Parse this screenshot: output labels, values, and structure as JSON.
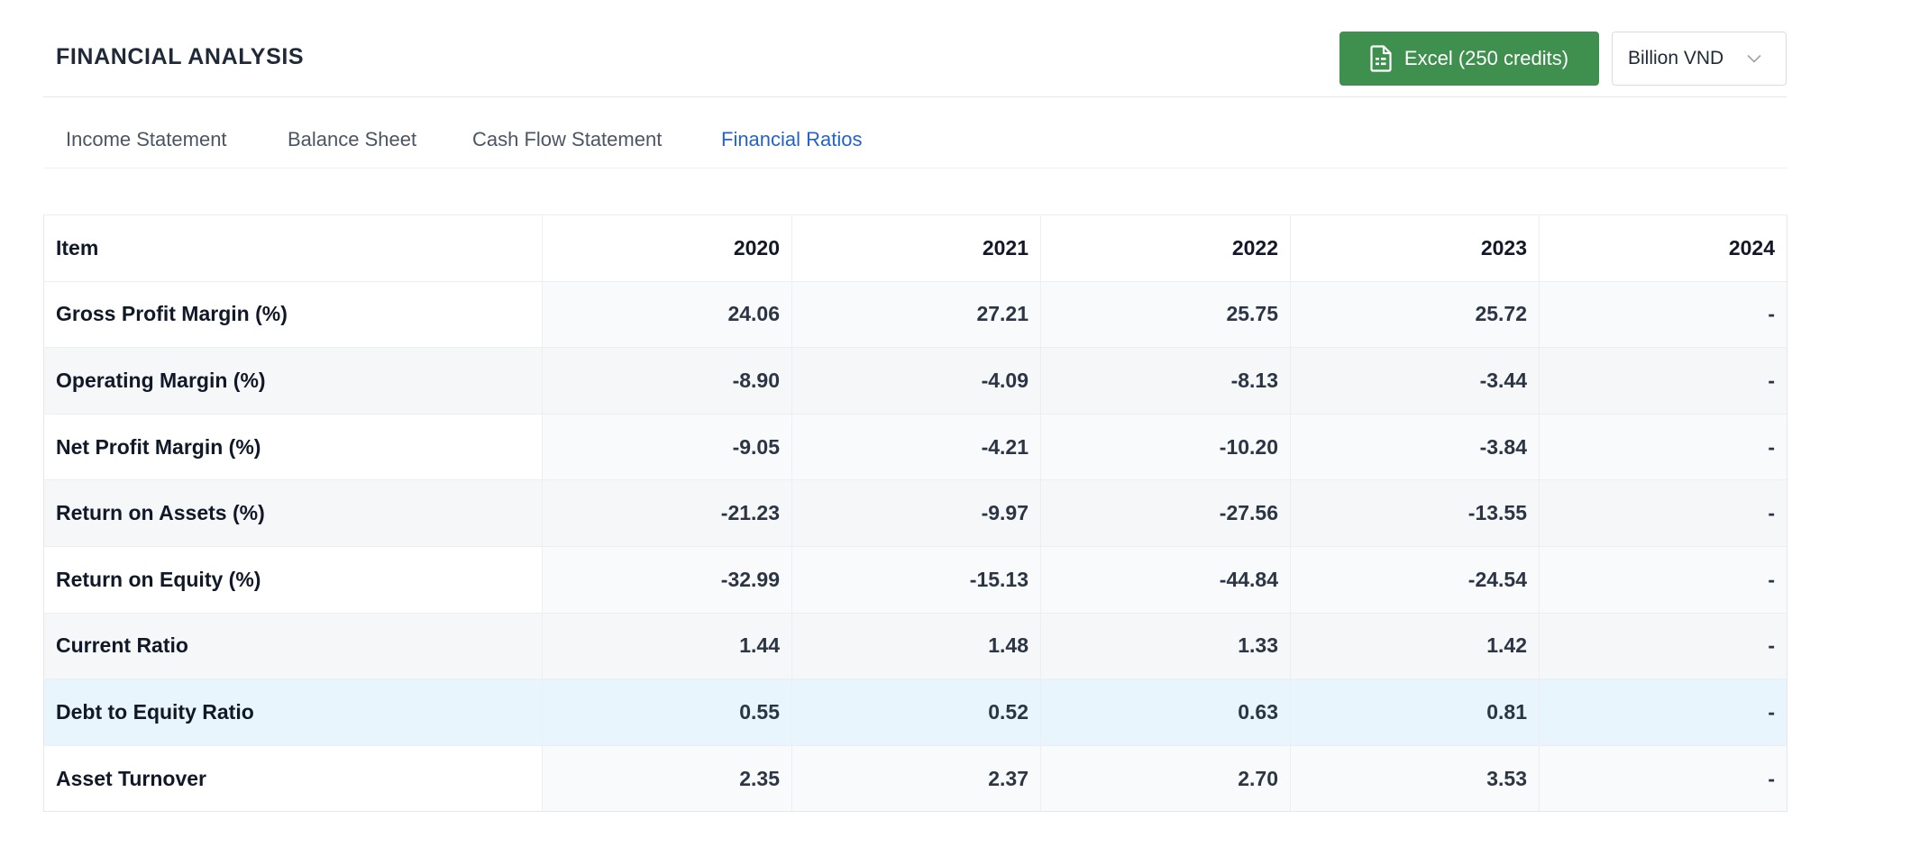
{
  "header": {
    "title": "FINANCIAL ANALYSIS",
    "excel_button_label": "Excel (250 credits)",
    "unit_selected": "Billion VND",
    "excel_icon": "spreadsheet-file-icon",
    "unit_chevron": "chevron-down-icon"
  },
  "tabs": [
    {
      "label": "Income Statement",
      "active": false
    },
    {
      "label": "Balance Sheet",
      "active": false
    },
    {
      "label": "Cash Flow Statement",
      "active": false
    },
    {
      "label": "Financial Ratios",
      "active": true
    }
  ],
  "colors": {
    "accent_green": "#3f8f4e",
    "active_tab": "#2563c9",
    "row_highlight": "#e8f5fd"
  },
  "table": {
    "columns": [
      "Item",
      "2020",
      "2021",
      "2022",
      "2023",
      "2024"
    ],
    "rows": [
      {
        "item": "Gross Profit Margin (%)",
        "values": [
          "24.06",
          "27.21",
          "25.75",
          "25.72",
          "-"
        ]
      },
      {
        "item": "Operating Margin (%)",
        "values": [
          "-8.90",
          "-4.09",
          "-8.13",
          "-3.44",
          "-"
        ]
      },
      {
        "item": "Net Profit Margin (%)",
        "values": [
          "-9.05",
          "-4.21",
          "-10.20",
          "-3.84",
          "-"
        ]
      },
      {
        "item": "Return on Assets (%)",
        "values": [
          "-21.23",
          "-9.97",
          "-27.56",
          "-13.55",
          "-"
        ]
      },
      {
        "item": "Return on Equity (%)",
        "values": [
          "-32.99",
          "-15.13",
          "-44.84",
          "-24.54",
          "-"
        ]
      },
      {
        "item": "Current Ratio",
        "values": [
          "1.44",
          "1.48",
          "1.33",
          "1.42",
          "-"
        ]
      },
      {
        "item": "Debt to Equity Ratio",
        "values": [
          "0.55",
          "0.52",
          "0.63",
          "0.81",
          "-"
        ]
      },
      {
        "item": "Asset Turnover",
        "values": [
          "2.35",
          "2.37",
          "2.70",
          "3.53",
          "-"
        ]
      }
    ]
  }
}
